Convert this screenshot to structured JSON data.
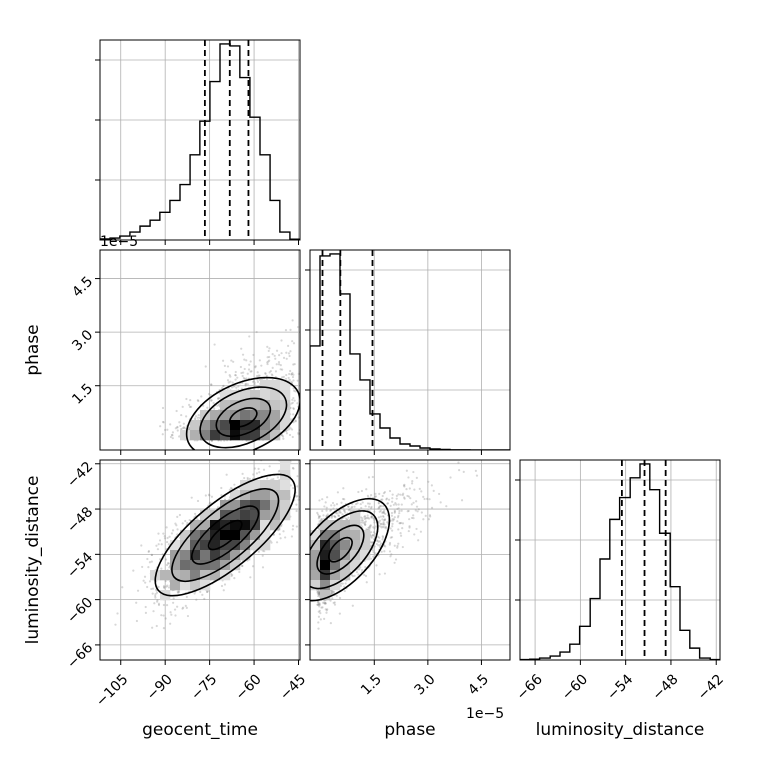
{
  "chart_data": {
    "type": "corner",
    "parameters": [
      {
        "name": "geocent_time",
        "range": [
          -112,
          -44.5
        ],
        "ticks": [
          -105,
          -90,
          -75,
          -60,
          -45
        ],
        "offset_label": "1e−5"
      },
      {
        "name": "phase",
        "range": [
          -0.3,
          5.3
        ],
        "ticks": [
          1.5,
          3.0,
          4.5
        ],
        "offset_label": "1e−5"
      },
      {
        "name": "luminosity_distance",
        "range": [
          -68,
          -41.5
        ],
        "ticks": [
          -66,
          -60,
          -54,
          -48,
          -42
        ],
        "offset_label": ""
      }
    ],
    "tick_texts": {
      "geocent_time": [
        "−105",
        "−90",
        "−75",
        "−60",
        "−45"
      ],
      "phase": [
        "1.5",
        "3.0",
        "4.5"
      ],
      "luminosity_distance": [
        "−66",
        "−60",
        "−54",
        "−48",
        "−42"
      ]
    },
    "histograms": [
      {
        "parameter": "geocent_time",
        "bin_edges": [
          -112,
          -108.6,
          -105.3,
          -101.9,
          -98.5,
          -95.1,
          -91.8,
          -88.4,
          -85,
          -81.6,
          -78.3,
          -74.9,
          -71.5,
          -68.1,
          -64.8,
          -61.4,
          -58,
          -54.6,
          -51.3,
          -47.9,
          -44.5
        ],
        "counts": [
          0.5,
          1,
          2,
          4,
          7,
          10,
          14,
          20,
          28,
          43,
          60,
          80,
          99,
          98,
          82,
          62,
          43,
          20,
          4,
          0.4
        ],
        "quantiles": [
          -76.6,
          -68.2,
          -61.9
        ]
      },
      {
        "parameter": "phase",
        "bin_edges": [
          -0.3,
          -0.02,
          0.26,
          0.54,
          0.82,
          1.1,
          1.38,
          1.66,
          1.94,
          2.22,
          2.5,
          2.78,
          3.06,
          3.34,
          3.62,
          3.9,
          4.18,
          4.46,
          4.74,
          5.02,
          5.3
        ],
        "counts": [
          52,
          97,
          98,
          78,
          48,
          35,
          18,
          11,
          6,
          3,
          2,
          1,
          0.5,
          0.3,
          0.1,
          0.1,
          0,
          0,
          0,
          0
        ],
        "quantiles": [
          0.05,
          0.55,
          1.45
        ]
      },
      {
        "parameter": "luminosity_distance",
        "bin_edges": [
          -68,
          -66.7,
          -65.4,
          -64,
          -62.7,
          -61.4,
          -60.1,
          -58.7,
          -57.4,
          -56.1,
          -54.8,
          -53.4,
          -52.1,
          -50.8,
          -49.5,
          -48.1,
          -46.8,
          -45.5,
          -44.2,
          -42.8,
          -41.5
        ],
        "counts": [
          0.2,
          0.4,
          1,
          2,
          4,
          8,
          17,
          31,
          51,
          71,
          82,
          92,
          99,
          86,
          64,
          37,
          15,
          6,
          1,
          0.2
        ],
        "quantiles": [
          -54.5,
          -51.5,
          -48.7
        ]
      }
    ],
    "scatter_pairs": [
      {
        "x": "geocent_time",
        "y": "phase",
        "relation": "y rises exponentially with x"
      },
      {
        "x": "geocent_time",
        "y": "luminosity_distance",
        "correlation": 0.75
      },
      {
        "x": "phase",
        "y": "luminosity_distance",
        "correlation": 0.7
      }
    ],
    "grid": true,
    "colors": {
      "line": "#000000",
      "grid": "#b0b0b0",
      "points": "#8c8c8c"
    }
  }
}
